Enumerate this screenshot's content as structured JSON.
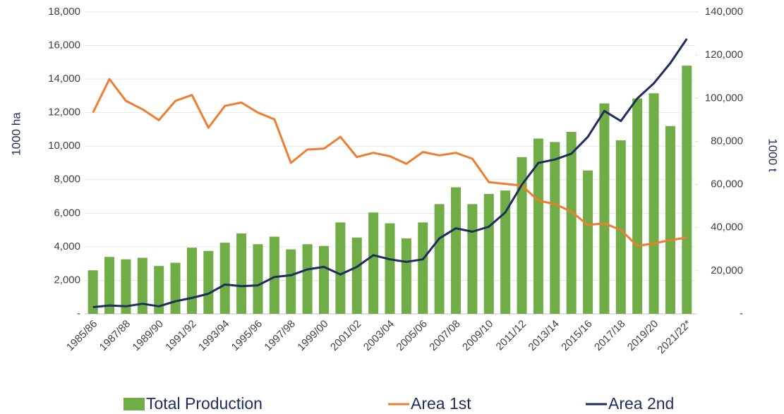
{
  "chart_data": {
    "type": "bar",
    "ylabel": "1000 ha",
    "y2label": "1000 t",
    "categories": [
      "1985/86",
      null,
      "1987/88",
      null,
      "1989/90",
      null,
      "1991/92",
      null,
      "1993/94",
      null,
      "1995/96",
      null,
      "1997/98",
      null,
      "1999/00",
      null,
      "2001/02",
      null,
      "2003/04",
      null,
      "2005/06",
      null,
      "2007/08",
      null,
      "2009/10",
      null,
      "2011/12",
      null,
      "2013/14",
      null,
      "2015/16",
      null,
      "2017/18",
      null,
      "2019/20",
      null,
      "2021/22*"
    ],
    "ylim": [
      0,
      18000
    ],
    "yticks": [
      {
        "value": 0,
        "label": "-"
      },
      {
        "value": 2000,
        "label": "2,000"
      },
      {
        "value": 4000,
        "label": "4,000"
      },
      {
        "value": 6000,
        "label": "6,000"
      },
      {
        "value": 8000,
        "label": "8,000"
      },
      {
        "value": 10000,
        "label": "10,000"
      },
      {
        "value": 12000,
        "label": "12,000"
      },
      {
        "value": 14000,
        "label": "14,000"
      },
      {
        "value": 16000,
        "label": "16,000"
      },
      {
        "value": 18000,
        "label": "18,000"
      }
    ],
    "y2lim": [
      0,
      140000
    ],
    "y2ticks": [
      {
        "value": 0,
        "label": "-"
      },
      {
        "value": 20000,
        "label": "20,000"
      },
      {
        "value": 40000,
        "label": "40,000"
      },
      {
        "value": 60000,
        "label": "60,000"
      },
      {
        "value": 80000,
        "label": "80,000"
      },
      {
        "value": 100000,
        "label": "100,000"
      },
      {
        "value": 120000,
        "label": "120,000"
      },
      {
        "value": 140000,
        "label": "140,000"
      }
    ],
    "grid": true,
    "legend": "bottom",
    "series": [
      {
        "name": "Total Production",
        "type": "bar",
        "axis": "y2",
        "color": "#70ad47",
        "values": [
          20200,
          26400,
          25300,
          26000,
          22200,
          23700,
          30700,
          29200,
          33000,
          37300,
          32300,
          35800,
          29900,
          32300,
          31500,
          42400,
          35400,
          47000,
          42000,
          35000,
          42400,
          50900,
          58700,
          50900,
          55600,
          57200,
          72700,
          81300,
          79700,
          84400,
          66500,
          97600,
          80500,
          99900,
          102300,
          87100,
          115100
        ]
      },
      {
        "name": "Area 1st",
        "type": "line",
        "color": "#ed7d31",
        "values": [
          12000,
          14000,
          12700,
          12200,
          11550,
          12700,
          13050,
          11100,
          12400,
          12600,
          12000,
          11600,
          9000,
          9800,
          9850,
          10550,
          9350,
          9600,
          9400,
          8950,
          9650,
          9450,
          9600,
          9250,
          7850,
          7750,
          7650,
          6750,
          6550,
          6100,
          5300,
          5400,
          5000,
          4050,
          4200,
          4400,
          4550
        ]
      },
      {
        "name": "Area 2nd",
        "type": "line",
        "color": "#1f2d5c",
        "values": [
          400,
          500,
          450,
          600,
          450,
          750,
          950,
          1200,
          1750,
          1650,
          1700,
          2200,
          2300,
          2650,
          2800,
          2350,
          2800,
          3500,
          3250,
          3100,
          3250,
          4500,
          5100,
          4900,
          5200,
          6050,
          7700,
          9000,
          9200,
          9550,
          10550,
          12100,
          11500,
          12850,
          13750,
          14950,
          16400
        ]
      }
    ]
  }
}
